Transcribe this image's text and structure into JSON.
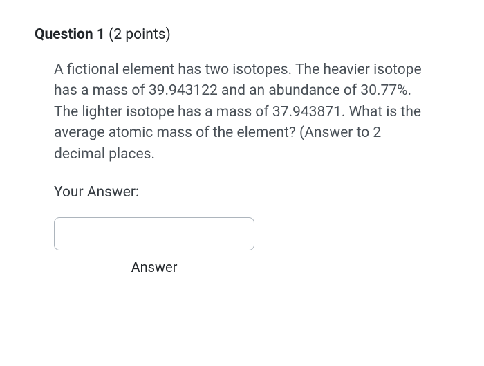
{
  "question": {
    "number_label": "Question 1",
    "points_label": "(2 points)",
    "text": "A fictional element has two isotopes.  The heavier isotope has a mass of 39.943122 and an abundance of 30.77%.  The lighter isotope has a mass of 37.943871.  What is the average atomic mass of the element?  (Answer to 2 decimal places.",
    "answer_prompt": "Your Answer:",
    "input_caption": "Answer",
    "input_value": ""
  },
  "colors": {
    "background": "#ffffff",
    "heading_text": "#212529",
    "body_text": "#495057",
    "input_border": "#adb5bd"
  }
}
